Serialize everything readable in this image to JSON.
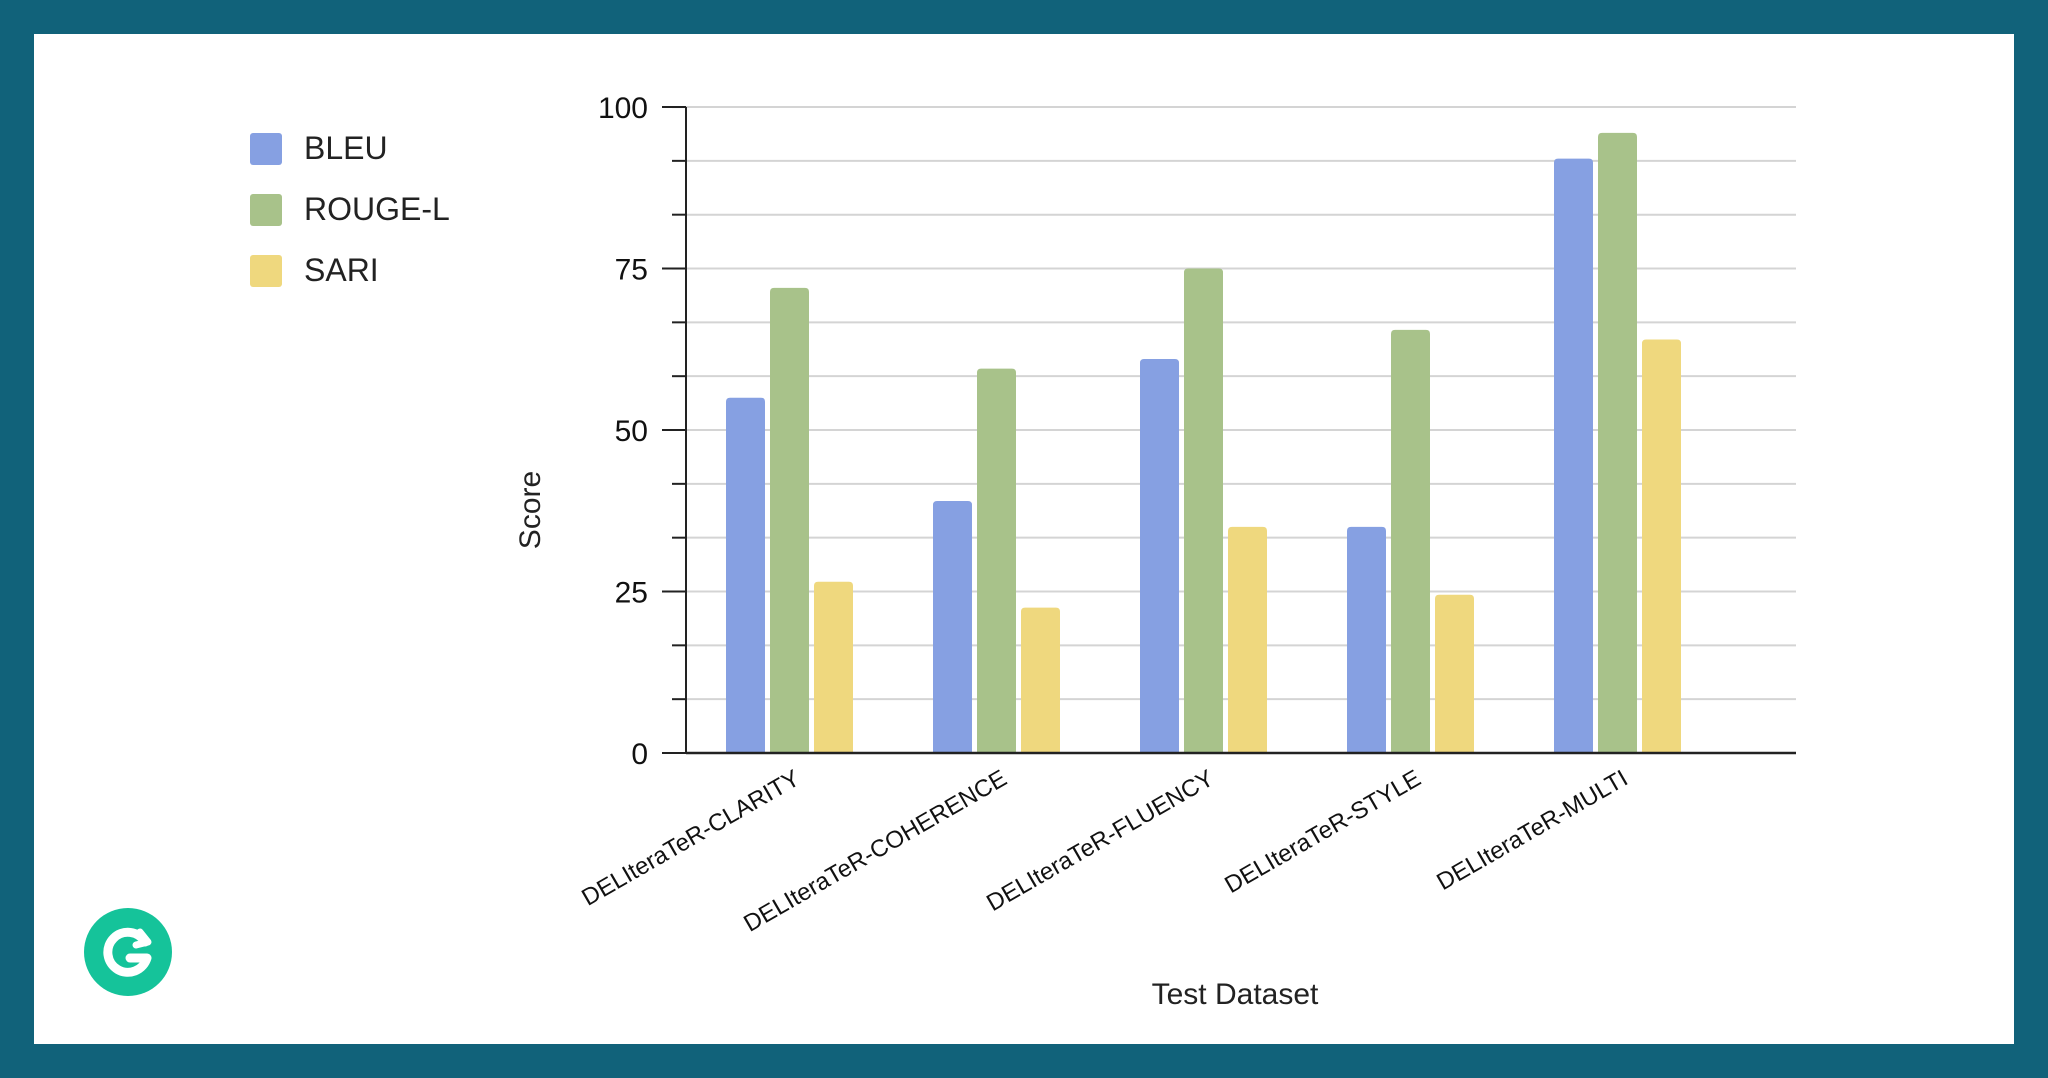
{
  "chart_data": {
    "type": "bar",
    "xlabel": "Test Dataset",
    "ylabel": "Score",
    "ylim": [
      0,
      100
    ],
    "yticks": [
      0,
      25,
      50,
      75,
      100
    ],
    "minor_tick_step": 8.333,
    "grid": true,
    "legend_position": "top-left",
    "categories": [
      "DELIteraTeR-CLARITY",
      "DELIteraTeR-COHERENCE",
      "DELIteraTeR-FLUENCY",
      "DELIteraTeR-STYLE",
      "DELIteraTeR-MULTI"
    ],
    "series": [
      {
        "name": "BLEU",
        "color": "#86a0e2",
        "values": [
          55,
          39,
          61,
          35,
          92
        ]
      },
      {
        "name": "ROUGE-L",
        "color": "#a8c28a",
        "values": [
          72,
          59.5,
          75,
          65.5,
          96
        ]
      },
      {
        "name": "SARI",
        "color": "#efd87e",
        "values": [
          26.5,
          22.5,
          35,
          24.5,
          64
        ]
      }
    ]
  },
  "colors": {
    "frame": "#11627a",
    "background": "#ffffff",
    "grid": "#d4d4d4",
    "axis": "#222222",
    "logo": "#15c39a"
  },
  "logo": {
    "icon": "grammarly-g-icon"
  }
}
